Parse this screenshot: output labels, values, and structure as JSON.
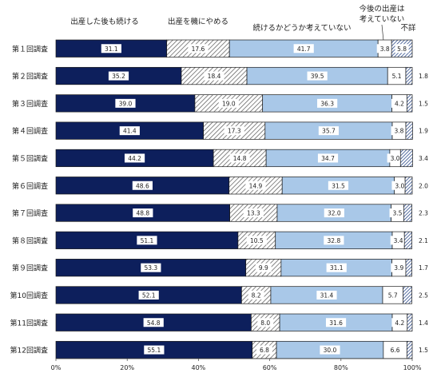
{
  "chart_data": {
    "type": "bar",
    "orientation": "horizontal",
    "stacked": true,
    "xlim": [
      0,
      100
    ],
    "x_ticks": [
      "0%",
      "20%",
      "40%",
      "60%",
      "80%",
      "100%"
    ],
    "categories": [
      "第１回調査",
      "第２回調査",
      "第３回調査",
      "第４回調査",
      "第５回調査",
      "第６回調査",
      "第７回調査",
      "第８回調査",
      "第９回調査",
      "第10回調査",
      "第11回調査",
      "第12回調査"
    ],
    "series": [
      {
        "name": "出産した後も続ける",
        "values": [
          31.1,
          35.2,
          39.0,
          41.4,
          44.2,
          48.6,
          48.8,
          51.1,
          53.3,
          52.1,
          54.8,
          55.1
        ]
      },
      {
        "name": "出産を機にやめる",
        "values": [
          17.6,
          18.4,
          19.0,
          17.3,
          14.8,
          14.9,
          13.3,
          10.5,
          9.9,
          8.2,
          8.0,
          6.8
        ]
      },
      {
        "name": "続けるかどうか考えていない",
        "values": [
          41.7,
          39.5,
          36.3,
          35.7,
          34.7,
          31.5,
          32.0,
          32.8,
          31.1,
          31.4,
          31.6,
          30.0
        ]
      },
      {
        "name": "今後の出産は考えていない",
        "values": [
          3.8,
          5.1,
          4.2,
          3.8,
          3.0,
          3.0,
          3.5,
          3.4,
          3.9,
          5.7,
          4.2,
          6.6
        ]
      },
      {
        "name": "不詳",
        "values": [
          5.8,
          1.8,
          1.5,
          1.9,
          3.4,
          2.0,
          2.3,
          2.1,
          1.7,
          2.5,
          1.4,
          1.5
        ]
      }
    ],
    "legend_labels": {
      "l0": "出産した後も続ける",
      "l1": "出産を機にやめる",
      "l2": "続けるかどうか考えていない",
      "l3a": "今後の出産は",
      "l3b": "考えていない",
      "l4": "不詳"
    },
    "colors": {
      "s0": "#0d1f5c",
      "s1_hatch": "#555555",
      "s2": "#a9c8e8",
      "s3": "#ffffff",
      "s4": "#5f7fb0",
      "outline": "#1a1a1a"
    }
  }
}
